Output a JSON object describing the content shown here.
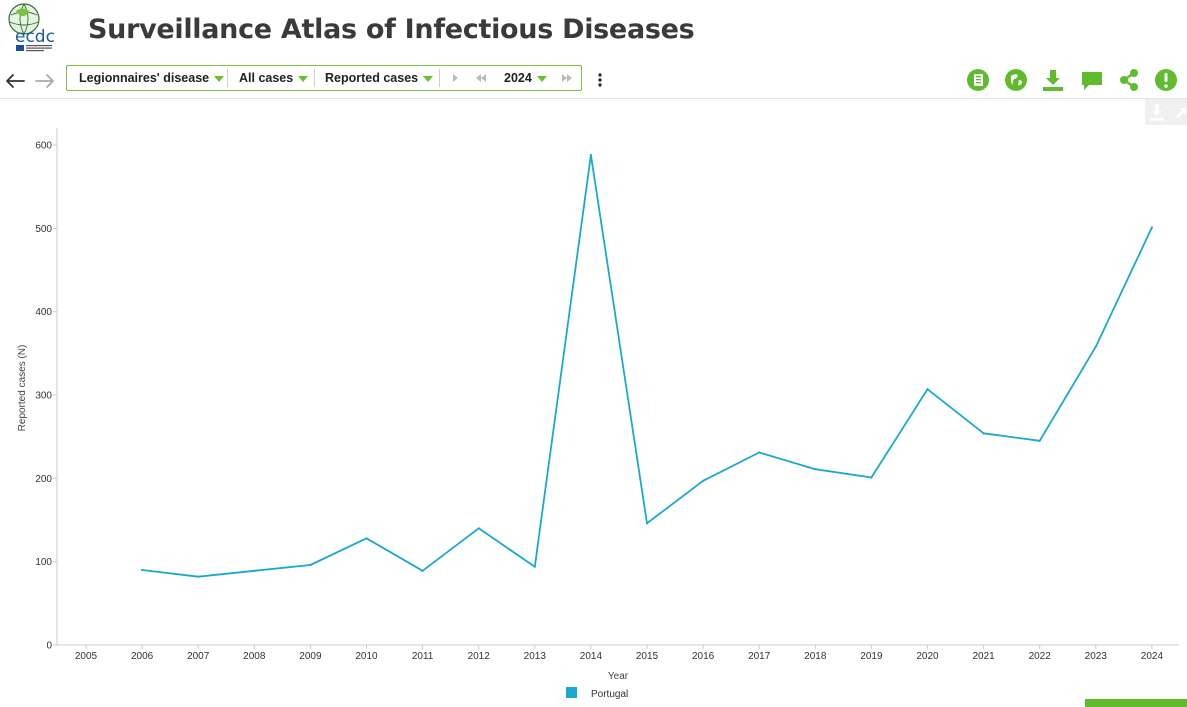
{
  "header": {
    "title": "Surveillance Atlas of Infectious Diseases"
  },
  "toolbar": {
    "disease": "Legionnaires' disease",
    "population": "All cases",
    "indicator": "Reported cases",
    "year": "2024"
  },
  "colors": {
    "accent": "#6abf2e",
    "series": "#1ba8d0"
  },
  "icons": [
    "back-arrow-icon",
    "forward-arrow-icon",
    "play-icon",
    "rewind-icon",
    "fast-forward-icon",
    "more-vertical-icon",
    "notebook-icon",
    "globe-icon",
    "download-icon",
    "comment-icon",
    "share-icon",
    "alert-icon"
  ],
  "chart_data": {
    "type": "line",
    "title": "",
    "xlabel": "Year",
    "ylabel": "Reported cases (N)",
    "categories": [
      "2005",
      "2006",
      "2007",
      "2008",
      "2009",
      "2010",
      "2011",
      "2012",
      "2013",
      "2014",
      "2015",
      "2016",
      "2017",
      "2018",
      "2019",
      "2020",
      "2021",
      "2022",
      "2023",
      "2024"
    ],
    "yticks": [
      0,
      100,
      200,
      300,
      400,
      500,
      600
    ],
    "ylim": [
      0,
      600
    ],
    "grid": false,
    "legend": "bottom",
    "series": [
      {
        "name": "Portugal",
        "color": "#1ba8d0",
        "values": [
          null,
          90,
          82,
          89,
          96,
          128,
          89,
          140,
          94,
          588,
          146,
          197,
          231,
          211,
          201,
          307,
          254,
          245,
          358,
          501
        ]
      }
    ]
  }
}
